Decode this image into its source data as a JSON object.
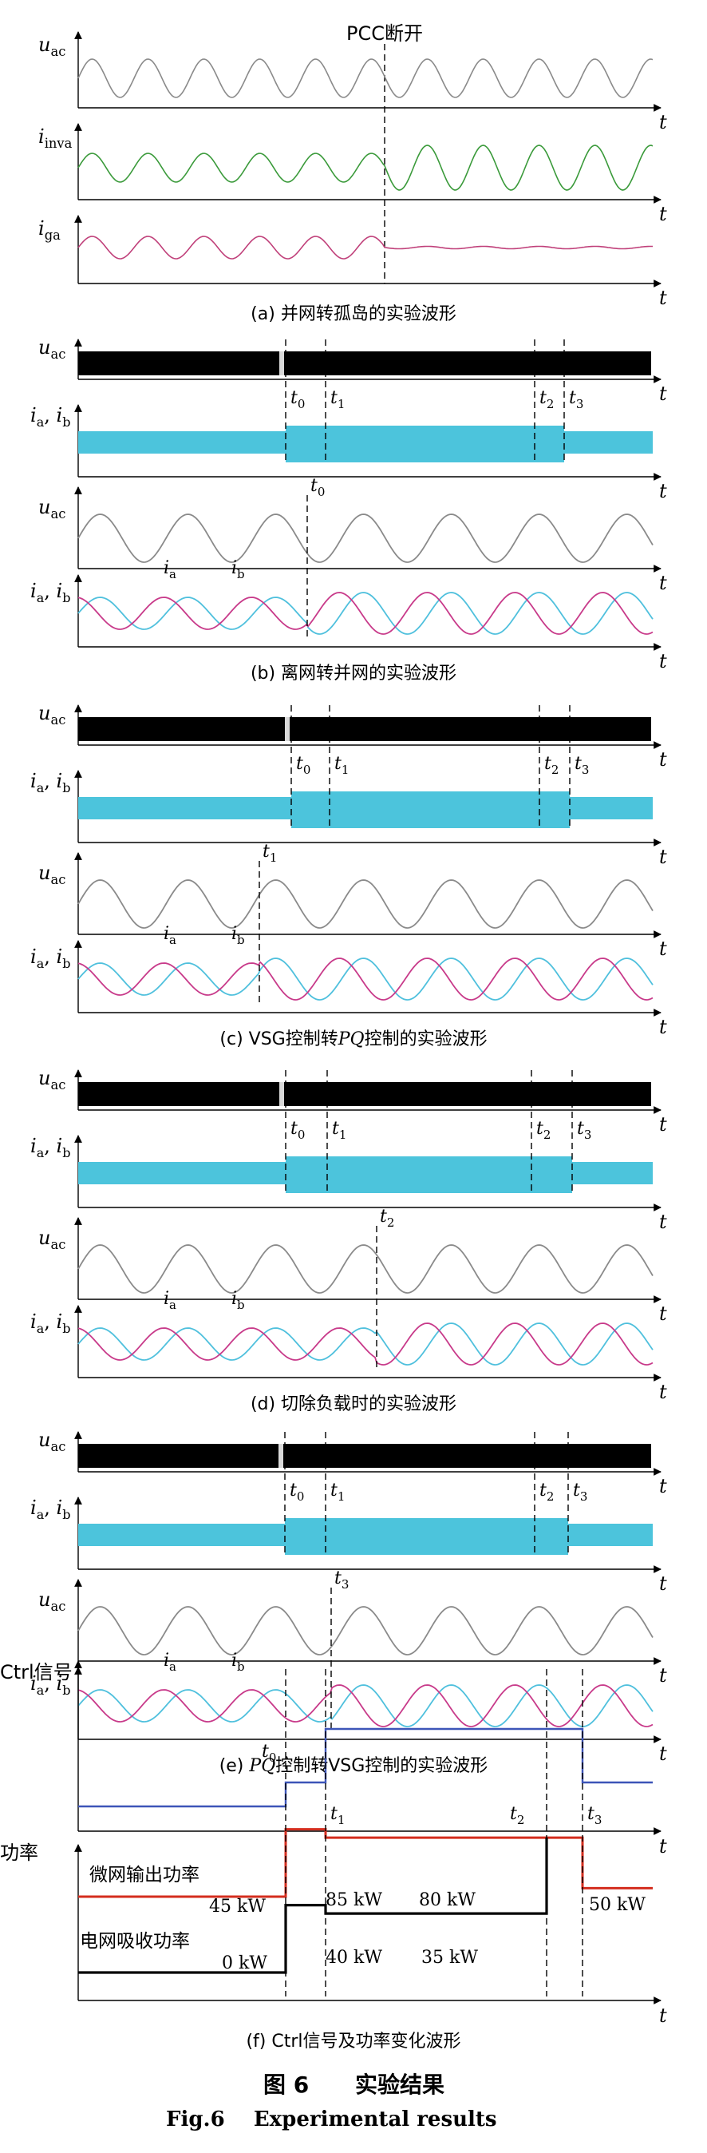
{
  "figure": {
    "number": "图 6",
    "title_cn": "实验结果",
    "title_en": "Fig.6    Experimental results"
  },
  "colors": {
    "voltage": "#8a8a8a",
    "grid_voltage_a": "#7fb5d0",
    "inv_current": "#3a9a3a",
    "grid_current": "#c0407a",
    "ia": "#4fc0dd",
    "ib": "#c83a8a",
    "envelope": "#4cc4dc",
    "dark": "#000000",
    "ctrl": "#3d55b8",
    "micro_power": "#d42d1e",
    "grid_power": "#000000"
  },
  "panels": [
    {
      "id": "a",
      "caption": "(a) 并网转孤岛的实验波形",
      "event_label": "PCC断开",
      "traces": [
        {
          "label": "u",
          "sub": "ac",
          "name": "u_ac",
          "kind": "sine",
          "color": "voltage"
        },
        {
          "label": "i",
          "sub": "inva",
          "name": "i_inva",
          "kind": "sine",
          "color": "inv_current"
        },
        {
          "label": "i",
          "sub": "ga",
          "name": "i_ga",
          "kind": "sine_to_flat",
          "color": "grid_current"
        }
      ]
    },
    {
      "id": "b",
      "caption": "(b) 离网转并网的实验波形",
      "markers": [
        {
          "label": "t",
          "sub": "0"
        },
        {
          "label": "t",
          "sub": "1"
        },
        {
          "label": "t",
          "sub": "2"
        },
        {
          "label": "t",
          "sub": "3"
        }
      ],
      "zoom_marker": {
        "label": "t",
        "sub": "0"
      },
      "currents": [
        {
          "label": "i",
          "sub": "a"
        },
        {
          "label": "i",
          "sub": "b"
        }
      ]
    },
    {
      "id": "c",
      "caption_parts": [
        "(c) VSG控制转",
        "PQ",
        "控制的实验波形"
      ],
      "markers": [
        {
          "label": "t",
          "sub": "0"
        },
        {
          "label": "t",
          "sub": "1"
        },
        {
          "label": "t",
          "sub": "2"
        },
        {
          "label": "t",
          "sub": "3"
        }
      ],
      "zoom_marker": {
        "label": "t",
        "sub": "1"
      },
      "currents": [
        {
          "label": "i",
          "sub": "a"
        },
        {
          "label": "i",
          "sub": "b"
        }
      ]
    },
    {
      "id": "d",
      "caption": "(d) 切除负载时的实验波形",
      "markers": [
        {
          "label": "t",
          "sub": "0"
        },
        {
          "label": "t",
          "sub": "1"
        },
        {
          "label": "t",
          "sub": "2"
        },
        {
          "label": "t",
          "sub": "3"
        }
      ],
      "zoom_marker": {
        "label": "t",
        "sub": "2"
      },
      "currents": [
        {
          "label": "i",
          "sub": "a"
        },
        {
          "label": "i",
          "sub": "b"
        }
      ]
    },
    {
      "id": "e",
      "caption_parts": [
        "(e) ",
        "PQ",
        "控制转VSG控制的实验波形"
      ],
      "markers": [
        {
          "label": "t",
          "sub": "0"
        },
        {
          "label": "t",
          "sub": "1"
        },
        {
          "label": "t",
          "sub": "2"
        },
        {
          "label": "t",
          "sub": "3"
        }
      ],
      "zoom_marker": {
        "label": "t",
        "sub": "3"
      },
      "currents": [
        {
          "label": "i",
          "sub": "a"
        },
        {
          "label": "i",
          "sub": "b"
        }
      ]
    }
  ],
  "trace_labels": {
    "u_ac": {
      "label": "u",
      "sub": "ac"
    },
    "i_ab": {
      "label": "i",
      "sub": "a",
      "label2": "i",
      "sub2": "b"
    }
  },
  "x_axis_symbol": "t",
  "chart_data": [
    {
      "type": "line",
      "title": "(f) Ctrl信号及功率变化波形",
      "ylabel": "Ctrl信号",
      "xlabel": "t",
      "x_events": [
        "t0",
        "t1",
        "t2",
        "t3"
      ],
      "series": [
        {
          "name": "Ctrl",
          "x": [
            "start",
            "t0",
            "t0",
            "t1",
            "t1",
            "t2",
            "t3",
            "t3",
            "end"
          ],
          "values": [
            0,
            0,
            1,
            1,
            2,
            2,
            2,
            1,
            1
          ]
        }
      ]
    },
    {
      "type": "line",
      "title": "(f) Ctrl信号及功率变化波形",
      "ylabel": "功率",
      "xlabel": "t",
      "x_events": [
        "t0",
        "t1",
        "t2",
        "t3"
      ],
      "series": [
        {
          "name": "微网输出功率",
          "unit": "kW",
          "segments": [
            {
              "range": "start–t0",
              "value": 45,
              "label": "45 kW"
            },
            {
              "range": "t0–t1",
              "value": 85,
              "label": "85 kW"
            },
            {
              "range": "t1–t3",
              "value": 80,
              "label": "80 kW"
            },
            {
              "range": "t3–end",
              "value": 50,
              "label": "50 kW"
            }
          ]
        },
        {
          "name": "电网吸收功率",
          "unit": "kW",
          "segments": [
            {
              "range": "start–t0",
              "value": 0,
              "label": "0 kW"
            },
            {
              "range": "t0–t1",
              "value": 40,
              "label": "40 kW"
            },
            {
              "range": "t1–t2",
              "value": 35,
              "label": "35 kW"
            }
          ]
        }
      ]
    }
  ]
}
